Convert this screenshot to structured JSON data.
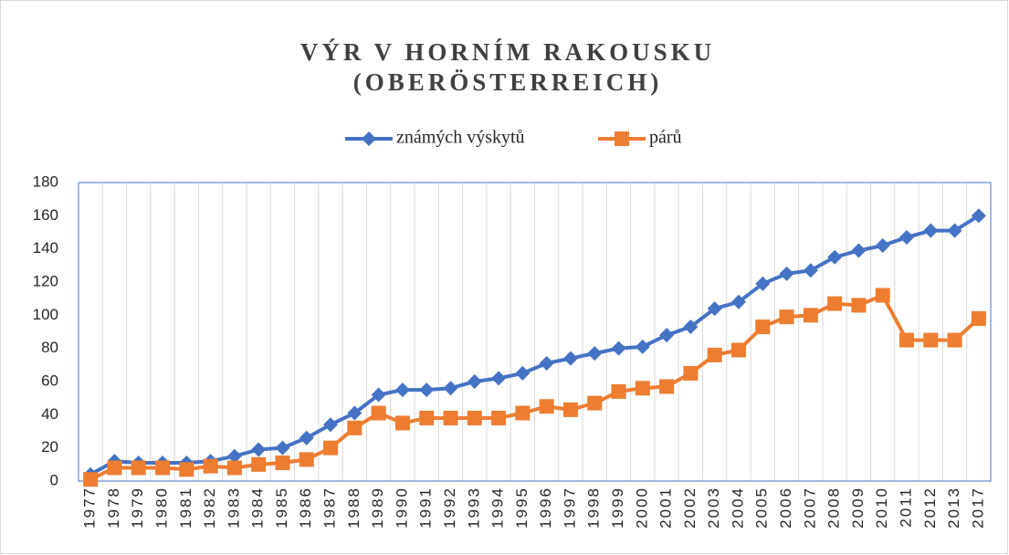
{
  "chart_data": {
    "type": "line",
    "title": [
      "VÝR V HORNÍM RAKOUSKU",
      "(OBERÖSTERREICH)"
    ],
    "categories": [
      "1977",
      "1978",
      "1979",
      "1980",
      "1981",
      "1982",
      "1983",
      "1984",
      "1985",
      "1986",
      "1987",
      "1988",
      "1989",
      "1990",
      "1991",
      "1992",
      "1993",
      "1994",
      "1995",
      "1996",
      "1997",
      "1998",
      "1999",
      "2000",
      "2001",
      "2002",
      "2003",
      "2004",
      "2005",
      "2006",
      "2007",
      "2008",
      "2009",
      "2010",
      "2011",
      "2012",
      "2013",
      "2017"
    ],
    "series": [
      {
        "name": "známých výskytů",
        "color": "#4472c4",
        "marker": "diamond",
        "values": [
          4,
          12,
          11,
          11,
          11,
          12,
          15,
          19,
          20,
          26,
          34,
          41,
          52,
          55,
          55,
          56,
          60,
          62,
          65,
          71,
          74,
          77,
          80,
          81,
          88,
          93,
          104,
          108,
          119,
          125,
          127,
          135,
          139,
          142,
          147,
          151,
          151,
          160
        ]
      },
      {
        "name": "párů",
        "color": "#ed7d31",
        "marker": "square",
        "values": [
          1,
          8,
          8,
          8,
          7,
          9,
          8,
          10,
          11,
          13,
          20,
          32,
          41,
          35,
          38,
          38,
          38,
          38,
          41,
          45,
          43,
          47,
          54,
          56,
          57,
          65,
          76,
          79,
          93,
          99,
          100,
          107,
          106,
          112,
          85,
          85,
          85,
          98
        ]
      }
    ],
    "ylim": [
      0,
      180
    ],
    "yticks": [
      0,
      20,
      40,
      60,
      80,
      100,
      120,
      140,
      160,
      180
    ],
    "grid": "x",
    "legend": "top"
  }
}
